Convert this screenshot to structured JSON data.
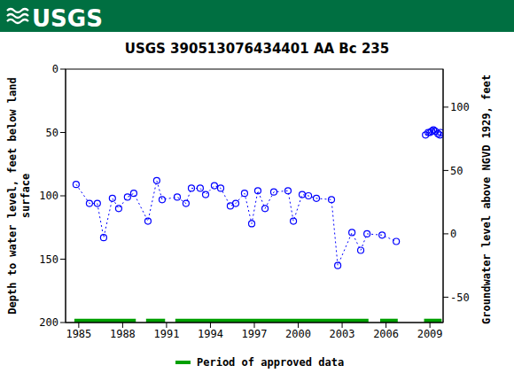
{
  "chart_data": {
    "type": "line",
    "header": "USGS",
    "title": "USGS 390513076434401 AA Bc 235",
    "y_label": [
      "Depth to water level, feet below land",
      "surface"
    ],
    "y2_label": "Groundwater level above NGVD 1929, feet",
    "x": [
      1984.82,
      1985.73,
      1986.27,
      1986.7,
      1987.3,
      1987.73,
      1988.33,
      1988.76,
      1989.73,
      1990.33,
      1990.7,
      1991.73,
      1992.33,
      1992.7,
      1993.3,
      1993.67,
      1994.27,
      1994.7,
      1995.36,
      1995.73,
      1996.33,
      1996.82,
      1997.24,
      1997.73,
      1998.33,
      1999.3,
      1999.67,
      2000.27,
      2000.7,
      2001.24,
      2002.27,
      2002.7,
      2003.67,
      2004.27,
      2004.7,
      2005.73,
      2006.7,
      2007.7,
      2008.7,
      2008.88,
      2009.0,
      2009.12,
      2009.24,
      2009.36,
      2009.55,
      2009.67,
      2009.73
    ],
    "values": [
      91,
      106,
      106,
      133,
      102,
      110,
      101,
      98,
      120,
      88,
      103,
      101,
      106,
      94,
      94,
      99,
      92,
      94,
      108,
      106,
      98,
      122,
      96,
      110,
      97,
      96,
      120,
      99,
      100,
      102,
      103,
      155,
      129,
      143,
      130,
      131,
      136,
      null,
      52,
      50,
      50,
      49,
      48,
      49,
      51,
      52,
      50
    ],
    "color": "#0000ff",
    "marker": "circle",
    "line_style": "dotted",
    "xlim": [
      1984.1,
      2009.9
    ],
    "xticks": [
      1985,
      1988,
      1991,
      1994,
      1997,
      2000,
      2003,
      2006,
      2009
    ],
    "ylim": [
      200,
      0
    ],
    "yticks": [
      0,
      50,
      100,
      150,
      200
    ],
    "y2lim": [
      -70,
      130
    ],
    "y2ticks": [
      -50,
      0,
      50,
      100
    ],
    "approved_data": {
      "name": "Period of approved data",
      "color": "#00a000",
      "periods": [
        [
          1984.7,
          1988.9
        ],
        [
          1989.6,
          1990.9
        ],
        [
          1991.6,
          2004.8
        ],
        [
          2005.6,
          2006.8
        ],
        [
          2008.6,
          2009.8
        ]
      ]
    }
  }
}
